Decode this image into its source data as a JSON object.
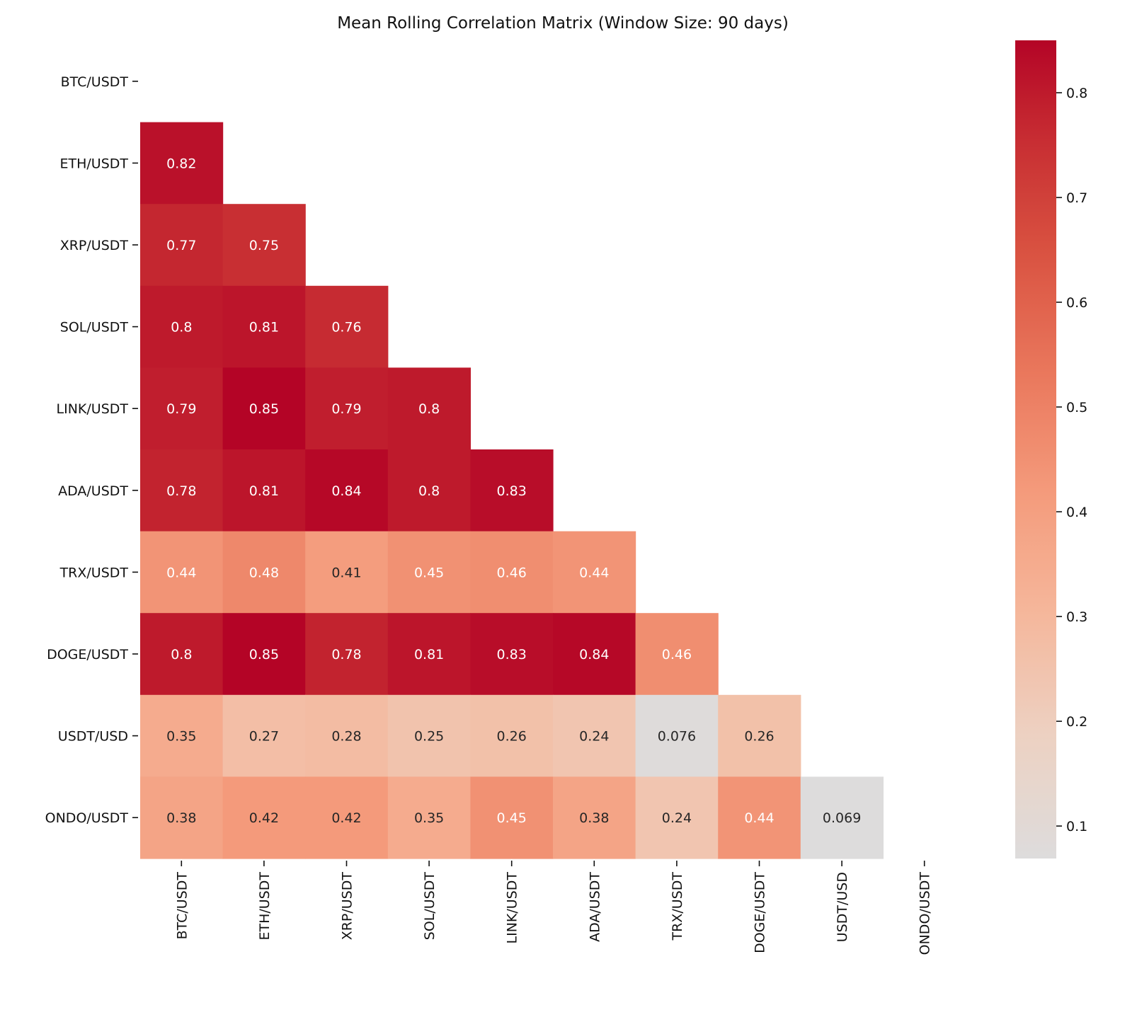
{
  "chart_data": {
    "type": "heatmap",
    "title": "Mean Rolling Correlation Matrix (Window Size: 90 days)",
    "xlabel": "",
    "ylabel": "",
    "labels": [
      "BTC/USDT",
      "ETH/USDT",
      "XRP/USDT",
      "SOL/USDT",
      "LINK/USDT",
      "ADA/USDT",
      "TRX/USDT",
      "DOGE/USDT",
      "USDT/USD",
      "ONDO/USDT"
    ],
    "mask": "upper-triangle-including-diagonal",
    "values": [
      [
        null,
        null,
        null,
        null,
        null,
        null,
        null,
        null,
        null,
        null
      ],
      [
        0.82,
        null,
        null,
        null,
        null,
        null,
        null,
        null,
        null,
        null
      ],
      [
        0.77,
        0.75,
        null,
        null,
        null,
        null,
        null,
        null,
        null,
        null
      ],
      [
        0.8,
        0.81,
        0.76,
        null,
        null,
        null,
        null,
        null,
        null,
        null
      ],
      [
        0.79,
        0.85,
        0.79,
        0.8,
        null,
        null,
        null,
        null,
        null,
        null
      ],
      [
        0.78,
        0.81,
        0.84,
        0.8,
        0.83,
        null,
        null,
        null,
        null,
        null
      ],
      [
        0.44,
        0.48,
        0.41,
        0.45,
        0.46,
        0.44,
        null,
        null,
        null,
        null
      ],
      [
        0.8,
        0.85,
        0.78,
        0.81,
        0.83,
        0.84,
        0.46,
        null,
        null,
        null
      ],
      [
        0.35,
        0.27,
        0.28,
        0.25,
        0.26,
        0.24,
        0.076,
        0.26,
        null,
        null
      ],
      [
        0.38,
        0.42,
        0.42,
        0.35,
        0.45,
        0.38,
        0.24,
        0.44,
        0.069,
        null
      ]
    ],
    "annotations": [
      [
        null,
        null,
        null,
        null,
        null,
        null,
        null,
        null,
        null,
        null
      ],
      [
        "0.82",
        null,
        null,
        null,
        null,
        null,
        null,
        null,
        null,
        null
      ],
      [
        "0.77",
        "0.75",
        null,
        null,
        null,
        null,
        null,
        null,
        null,
        null
      ],
      [
        "0.8",
        "0.81",
        "0.76",
        null,
        null,
        null,
        null,
        null,
        null,
        null
      ],
      [
        "0.79",
        "0.85",
        "0.79",
        "0.8",
        null,
        null,
        null,
        null,
        null,
        null
      ],
      [
        "0.78",
        "0.81",
        "0.84",
        "0.8",
        "0.83",
        null,
        null,
        null,
        null,
        null
      ],
      [
        "0.44",
        "0.48",
        "0.41",
        "0.45",
        "0.46",
        "0.44",
        null,
        null,
        null,
        null
      ],
      [
        "0.8",
        "0.85",
        "0.78",
        "0.81",
        "0.83",
        "0.84",
        "0.46",
        null,
        null,
        null
      ],
      [
        "0.35",
        "0.27",
        "0.28",
        "0.25",
        "0.26",
        "0.24",
        "0.076",
        "0.26",
        null,
        null
      ],
      [
        "0.38",
        "0.42",
        "0.42",
        "0.35",
        "0.45",
        "0.38",
        "0.24",
        "0.44",
        "0.069",
        null
      ]
    ],
    "colorbar": {
      "colormap": "coolwarm-upper-half",
      "vmin": 0.069,
      "vmax": 0.85,
      "ticks": [
        0.1,
        0.2,
        0.3,
        0.4,
        0.5,
        0.6,
        0.7,
        0.8
      ],
      "tick_labels": [
        "0.1",
        "0.2",
        "0.3",
        "0.4",
        "0.5",
        "0.6",
        "0.7",
        "0.8"
      ]
    },
    "grid": false,
    "legend": "colorbar-right"
  }
}
